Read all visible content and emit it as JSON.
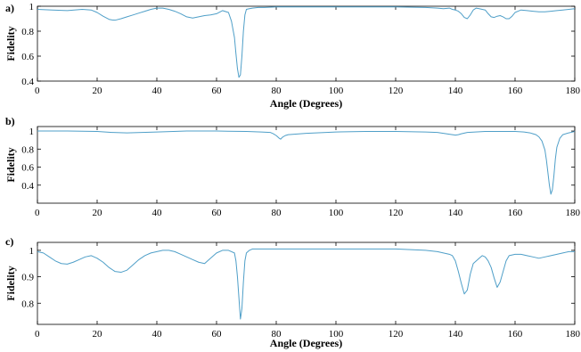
{
  "figure": {
    "line_color": "#4f9fc8",
    "panels": [
      {
        "label": "a)",
        "xlabel": "Angle (Degrees)",
        "ylabel": "Fidelity",
        "xticks": [
          "0",
          "20",
          "40",
          "60",
          "80",
          "100",
          "120",
          "140",
          "160",
          "180"
        ],
        "yticks": [
          "0.4",
          "0.6",
          "0.8",
          "1"
        ]
      },
      {
        "label": "b)",
        "xlabel": "",
        "ylabel": "Fidelity",
        "xticks": [
          "0",
          "20",
          "40",
          "60",
          "80",
          "100",
          "120",
          "140",
          "160",
          "180"
        ],
        "yticks": [
          "0.4",
          "0.6",
          "0.8",
          "1"
        ]
      },
      {
        "label": "c)",
        "xlabel": "Angle (Degrees)",
        "ylabel": "Fidelity",
        "xticks": [
          "0",
          "20",
          "40",
          "60",
          "80",
          "100",
          "120",
          "140",
          "160",
          "180"
        ],
        "yticks": [
          "0.8",
          "0.9",
          "1"
        ]
      }
    ]
  },
  "chart_data": [
    {
      "type": "line",
      "title": "",
      "xlabel": "Angle (Degrees)",
      "ylabel": "Fidelity",
      "xlim": [
        0,
        180
      ],
      "ylim": [
        0.4,
        1.0
      ],
      "grid": false,
      "series": [
        {
          "x": [
            0,
            5,
            10,
            15,
            18,
            20,
            22,
            24,
            25,
            26,
            28,
            30,
            32,
            34,
            36,
            38,
            40,
            42,
            44,
            46,
            48,
            50,
            52,
            54,
            56,
            58,
            60,
            62,
            64,
            65,
            66,
            66.5,
            67,
            67.5,
            68,
            68.5,
            69,
            69.5,
            70,
            71,
            72,
            74,
            76,
            80,
            90,
            100,
            110,
            120,
            130,
            134,
            136,
            138,
            139,
            140,
            141,
            142,
            143,
            144,
            145,
            146,
            147,
            148,
            149,
            150,
            151,
            152,
            153,
            154,
            155,
            156,
            157,
            158,
            159,
            160,
            161,
            162,
            164,
            166,
            168,
            170,
            172,
            174,
            176,
            178,
            180
          ],
          "y": [
            0.975,
            0.97,
            0.965,
            0.975,
            0.97,
            0.95,
            0.92,
            0.895,
            0.89,
            0.888,
            0.9,
            0.915,
            0.93,
            0.945,
            0.96,
            0.975,
            0.985,
            0.985,
            0.975,
            0.96,
            0.94,
            0.915,
            0.905,
            0.915,
            0.925,
            0.93,
            0.94,
            0.965,
            0.95,
            0.88,
            0.75,
            0.62,
            0.5,
            0.43,
            0.45,
            0.6,
            0.8,
            0.93,
            0.975,
            0.98,
            0.985,
            0.99,
            0.99,
            0.995,
            0.995,
            0.995,
            0.995,
            0.995,
            0.99,
            0.985,
            0.98,
            0.985,
            0.975,
            0.97,
            0.96,
            0.94,
            0.91,
            0.9,
            0.93,
            0.97,
            0.985,
            0.98,
            0.975,
            0.97,
            0.94,
            0.915,
            0.91,
            0.92,
            0.925,
            0.915,
            0.9,
            0.9,
            0.92,
            0.95,
            0.96,
            0.97,
            0.965,
            0.96,
            0.955,
            0.955,
            0.96,
            0.965,
            0.97,
            0.975,
            0.98
          ]
        }
      ]
    },
    {
      "type": "line",
      "title": "",
      "xlabel": "",
      "ylabel": "Fidelity",
      "xlim": [
        0,
        180
      ],
      "ylim": [
        0.2,
        1.05
      ],
      "grid": false,
      "series": [
        {
          "x": [
            0,
            10,
            20,
            25,
            30,
            40,
            50,
            60,
            70,
            75,
            78,
            79,
            80,
            80.5,
            81,
            81.5,
            82,
            83,
            84,
            86,
            90,
            100,
            110,
            120,
            130,
            134,
            136,
            138,
            139,
            140,
            141,
            142,
            144,
            150,
            155,
            160,
            163,
            165,
            166,
            167,
            168,
            169,
            170,
            170.5,
            171,
            171.5,
            172,
            172.5,
            173,
            173.5,
            174,
            175,
            176,
            178,
            180
          ],
          "y": [
            1.0,
            1.0,
            0.995,
            0.985,
            0.98,
            0.99,
            1.0,
            1.0,
            0.995,
            0.99,
            0.985,
            0.97,
            0.95,
            0.935,
            0.92,
            0.91,
            0.93,
            0.95,
            0.96,
            0.965,
            0.975,
            0.99,
            0.995,
            0.995,
            0.99,
            0.985,
            0.975,
            0.965,
            0.96,
            0.955,
            0.96,
            0.97,
            0.985,
            0.995,
            0.995,
            0.995,
            0.99,
            0.98,
            0.97,
            0.96,
            0.935,
            0.89,
            0.79,
            0.68,
            0.54,
            0.4,
            0.3,
            0.35,
            0.5,
            0.69,
            0.82,
            0.92,
            0.96,
            0.98,
            0.995
          ]
        }
      ]
    },
    {
      "type": "line",
      "title": "",
      "xlabel": "Angle (Degrees)",
      "ylabel": "Fidelity",
      "xlim": [
        0,
        180
      ],
      "ylim": [
        0.72,
        1.03
      ],
      "grid": false,
      "series": [
        {
          "x": [
            0,
            2,
            4,
            6,
            8,
            10,
            12,
            14,
            16,
            18,
            20,
            22,
            24,
            26,
            28,
            30,
            32,
            34,
            36,
            38,
            40,
            42,
            44,
            46,
            48,
            50,
            52,
            54,
            56,
            58,
            60,
            62,
            64,
            66,
            66.5,
            67,
            67.5,
            68,
            68.5,
            69,
            69.5,
            70,
            71,
            72,
            74,
            80,
            90,
            100,
            110,
            120,
            130,
            134,
            136,
            138,
            139,
            140,
            141,
            142,
            143,
            144,
            145,
            146,
            147,
            148,
            149,
            150,
            151,
            152,
            153,
            154,
            155,
            156,
            157,
            158,
            160,
            162,
            164,
            166,
            168,
            170,
            172,
            174,
            176,
            178,
            180
          ],
          "y": [
            0.995,
            0.99,
            0.975,
            0.96,
            0.95,
            0.948,
            0.955,
            0.965,
            0.975,
            0.98,
            0.97,
            0.955,
            0.935,
            0.92,
            0.917,
            0.925,
            0.945,
            0.965,
            0.98,
            0.99,
            0.995,
            1.0,
            1.0,
            0.995,
            0.985,
            0.975,
            0.965,
            0.955,
            0.95,
            0.97,
            0.99,
            1.0,
            1.0,
            0.99,
            0.96,
            0.9,
            0.82,
            0.74,
            0.78,
            0.88,
            0.96,
            0.99,
            1.0,
            1.005,
            1.005,
            1.005,
            1.005,
            1.005,
            1.005,
            1.005,
            1.0,
            0.995,
            0.99,
            0.985,
            0.98,
            0.96,
            0.92,
            0.875,
            0.835,
            0.85,
            0.91,
            0.95,
            0.96,
            0.97,
            0.98,
            0.975,
            0.96,
            0.935,
            0.895,
            0.86,
            0.88,
            0.92,
            0.96,
            0.98,
            0.985,
            0.985,
            0.98,
            0.975,
            0.97,
            0.975,
            0.98,
            0.985,
            0.99,
            0.995,
            0.995
          ]
        }
      ]
    }
  ]
}
